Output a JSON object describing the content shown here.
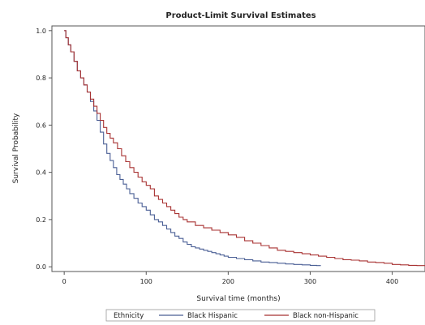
{
  "chart_data": {
    "type": "line",
    "title": "Product-Limit Survival Estimates",
    "xlabel": "Survival time (months)",
    "ylabel": "Survival Probability",
    "xlim": [
      -15,
      440
    ],
    "ylim": [
      -0.02,
      1.02
    ],
    "xticks": [
      0,
      100,
      200,
      300,
      400
    ],
    "xtick_labels": [
      "0",
      "100",
      "200",
      "300",
      "400"
    ],
    "yticks": [
      0.0,
      0.2,
      0.4,
      0.6,
      0.8,
      1.0
    ],
    "ytick_labels": [
      "0.0",
      "0.2",
      "0.4",
      "0.6",
      "0.8",
      "1.0"
    ],
    "grid": false,
    "legend": {
      "title": "Ethnicity",
      "placement": "bottom"
    },
    "series": [
      {
        "name": "Black Hispanic",
        "color": "#4a5f95",
        "points": [
          [
            0,
            1.0
          ],
          [
            2,
            0.97
          ],
          [
            5,
            0.94
          ],
          [
            8,
            0.91
          ],
          [
            12,
            0.87
          ],
          [
            16,
            0.83
          ],
          [
            20,
            0.8
          ],
          [
            24,
            0.77
          ],
          [
            28,
            0.74
          ],
          [
            32,
            0.7
          ],
          [
            36,
            0.66
          ],
          [
            40,
            0.62
          ],
          [
            44,
            0.57
          ],
          [
            48,
            0.52
          ],
          [
            52,
            0.48
          ],
          [
            56,
            0.45
          ],
          [
            60,
            0.42
          ],
          [
            64,
            0.39
          ],
          [
            68,
            0.37
          ],
          [
            72,
            0.35
          ],
          [
            76,
            0.33
          ],
          [
            80,
            0.31
          ],
          [
            85,
            0.29
          ],
          [
            90,
            0.27
          ],
          [
            95,
            0.255
          ],
          [
            100,
            0.24
          ],
          [
            105,
            0.22
          ],
          [
            110,
            0.2
          ],
          [
            115,
            0.19
          ],
          [
            120,
            0.175
          ],
          [
            125,
            0.16
          ],
          [
            130,
            0.145
          ],
          [
            135,
            0.13
          ],
          [
            140,
            0.12
          ],
          [
            145,
            0.105
          ],
          [
            150,
            0.095
          ],
          [
            155,
            0.085
          ],
          [
            160,
            0.08
          ],
          [
            165,
            0.075
          ],
          [
            170,
            0.07
          ],
          [
            175,
            0.065
          ],
          [
            180,
            0.06
          ],
          [
            185,
            0.055
          ],
          [
            190,
            0.05
          ],
          [
            195,
            0.045
          ],
          [
            200,
            0.04
          ],
          [
            210,
            0.035
          ],
          [
            220,
            0.03
          ],
          [
            230,
            0.025
          ],
          [
            240,
            0.02
          ],
          [
            250,
            0.018
          ],
          [
            260,
            0.015
          ],
          [
            270,
            0.012
          ],
          [
            280,
            0.01
          ],
          [
            290,
            0.008
          ],
          [
            300,
            0.006
          ],
          [
            308,
            0.005
          ],
          [
            313,
            0.005
          ]
        ]
      },
      {
        "name": "Black non-Hispanic",
        "color": "#a83232",
        "points": [
          [
            0,
            1.0
          ],
          [
            2,
            0.97
          ],
          [
            5,
            0.94
          ],
          [
            8,
            0.91
          ],
          [
            12,
            0.87
          ],
          [
            16,
            0.83
          ],
          [
            20,
            0.8
          ],
          [
            24,
            0.77
          ],
          [
            28,
            0.74
          ],
          [
            32,
            0.71
          ],
          [
            36,
            0.68
          ],
          [
            40,
            0.65
          ],
          [
            44,
            0.62
          ],
          [
            48,
            0.59
          ],
          [
            52,
            0.565
          ],
          [
            56,
            0.545
          ],
          [
            60,
            0.525
          ],
          [
            65,
            0.5
          ],
          [
            70,
            0.47
          ],
          [
            75,
            0.445
          ],
          [
            80,
            0.42
          ],
          [
            85,
            0.4
          ],
          [
            90,
            0.38
          ],
          [
            95,
            0.36
          ],
          [
            100,
            0.345
          ],
          [
            105,
            0.33
          ],
          [
            110,
            0.3
          ],
          [
            115,
            0.285
          ],
          [
            120,
            0.27
          ],
          [
            125,
            0.255
          ],
          [
            130,
            0.24
          ],
          [
            135,
            0.225
          ],
          [
            140,
            0.21
          ],
          [
            145,
            0.2
          ],
          [
            150,
            0.19
          ],
          [
            160,
            0.175
          ],
          [
            170,
            0.165
          ],
          [
            180,
            0.155
          ],
          [
            190,
            0.145
          ],
          [
            200,
            0.135
          ],
          [
            210,
            0.125
          ],
          [
            220,
            0.11
          ],
          [
            230,
            0.1
          ],
          [
            240,
            0.09
          ],
          [
            250,
            0.08
          ],
          [
            260,
            0.07
          ],
          [
            270,
            0.065
          ],
          [
            280,
            0.06
          ],
          [
            290,
            0.055
          ],
          [
            300,
            0.05
          ],
          [
            310,
            0.045
          ],
          [
            320,
            0.04
          ],
          [
            330,
            0.035
          ],
          [
            340,
            0.03
          ],
          [
            350,
            0.028
          ],
          [
            360,
            0.025
          ],
          [
            370,
            0.02
          ],
          [
            380,
            0.018
          ],
          [
            390,
            0.015
          ],
          [
            400,
            0.01
          ],
          [
            410,
            0.008
          ],
          [
            420,
            0.006
          ],
          [
            430,
            0.005
          ],
          [
            440,
            0.005
          ]
        ]
      }
    ]
  }
}
